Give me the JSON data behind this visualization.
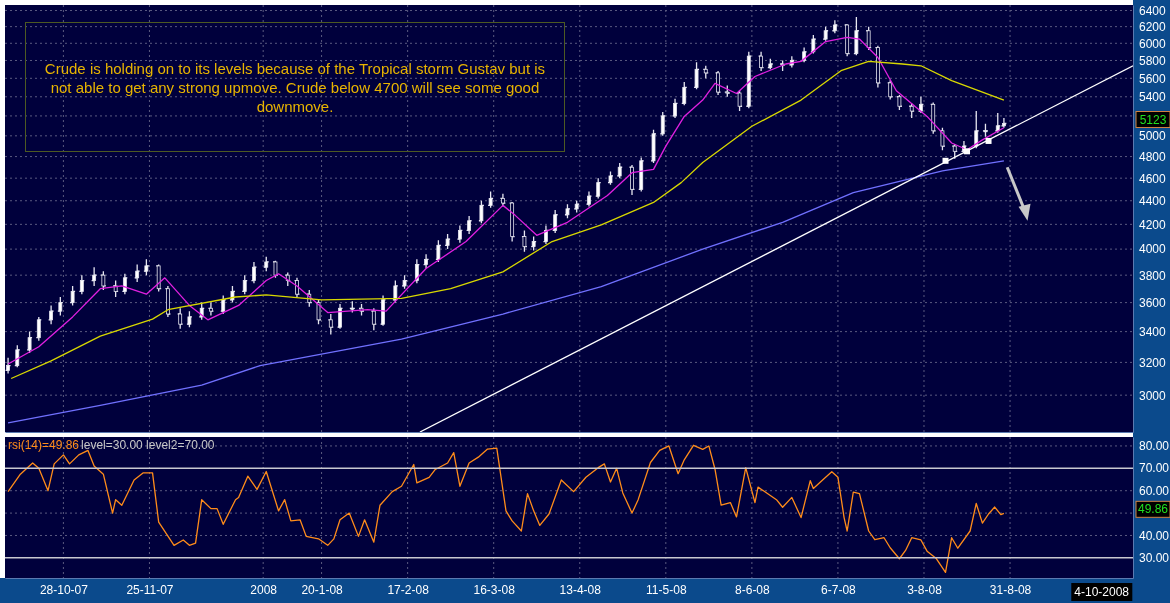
{
  "chart_data": [
    {
      "type": "candlestick",
      "log": true,
      "grid": true,
      "tick_labels": "y",
      "xlim": [
        "2007-10-09",
        "2008-10-10"
      ],
      "ylim": [
        2790,
        6470
      ],
      "xticks": [
        {
          "value": "2007-10-28",
          "label": null
        },
        {
          "value": "2007-11-25",
          "label": null
        },
        {
          "value": "2008-01-01",
          "label": null
        },
        {
          "value": "2008-01-20",
          "label": null
        },
        {
          "value": "2008-02-17",
          "label": null
        },
        {
          "value": "2008-03-16",
          "label": null
        },
        {
          "value": "2008-04-13",
          "label": null
        },
        {
          "value": "2008-05-11",
          "label": null
        },
        {
          "value": "2008-06-08",
          "label": null
        },
        {
          "value": "2008-07-06",
          "label": null
        },
        {
          "value": "2008-08-03",
          "label": null
        },
        {
          "value": "2008-08-31",
          "label": null
        }
      ],
      "yticks": [
        3000,
        3200,
        3400,
        3600,
        3800,
        4000,
        4200,
        4400,
        4600,
        4800,
        5000,
        {
          "value": 5200,
          "label": null
        },
        5400,
        5600,
        5800,
        6000,
        6200,
        6400
      ],
      "x": [
        "2007-10-10",
        "2007-10-13",
        "2007-10-17",
        "2007-10-20",
        "2007-10-24",
        "2007-10-27",
        "2007-10-31",
        "2007-11-03",
        "2007-11-07",
        "2007-11-10",
        "2007-11-14",
        "2007-11-17",
        "2007-11-21",
        "2007-11-24",
        "2007-11-28",
        "2007-12-01",
        "2007-12-05",
        "2007-12-08",
        "2007-12-12",
        "2007-12-15",
        "2007-12-19",
        "2007-12-22",
        "2007-12-26",
        "2007-12-29",
        "2008-01-02",
        "2008-01-05",
        "2008-01-09",
        "2008-01-12",
        "2008-01-16",
        "2008-01-19",
        "2008-01-23",
        "2008-01-26",
        "2008-01-30",
        "2008-02-02",
        "2008-02-06",
        "2008-02-09",
        "2008-02-13",
        "2008-02-16",
        "2008-02-20",
        "2008-02-23",
        "2008-02-27",
        "2008-03-01",
        "2008-03-05",
        "2008-03-08",
        "2008-03-12",
        "2008-03-15",
        "2008-03-19",
        "2008-03-22",
        "2008-03-26",
        "2008-03-29",
        "2008-04-02",
        "2008-04-05",
        "2008-04-09",
        "2008-04-12",
        "2008-04-16",
        "2008-04-19",
        "2008-04-23",
        "2008-04-26",
        "2008-04-30",
        "2008-05-03",
        "2008-05-07",
        "2008-05-10",
        "2008-05-14",
        "2008-05-17",
        "2008-05-21",
        "2008-05-24",
        "2008-05-28",
        "2008-05-31",
        "2008-06-04",
        "2008-06-07",
        "2008-06-11",
        "2008-06-14",
        "2008-06-18",
        "2008-06-21",
        "2008-06-25",
        "2008-06-28",
        "2008-07-02",
        "2008-07-05",
        "2008-07-09",
        "2008-07-12",
        "2008-07-16",
        "2008-07-19",
        "2008-07-23",
        "2008-07-26",
        "2008-07-30",
        "2008-08-02",
        "2008-08-06",
        "2008-08-09",
        "2008-08-13",
        "2008-08-16",
        "2008-08-20",
        "2008-08-23",
        "2008-08-27",
        "2008-08-29"
      ],
      "ohlc": [
        [
          3150,
          3230,
          3130,
          3180
        ],
        [
          3180,
          3310,
          3170,
          3280
        ],
        [
          3280,
          3400,
          3260,
          3360
        ],
        [
          3360,
          3500,
          3340,
          3480
        ],
        [
          3480,
          3580,
          3450,
          3540
        ],
        [
          3540,
          3640,
          3510,
          3600
        ],
        [
          3600,
          3720,
          3580,
          3680
        ],
        [
          3680,
          3800,
          3660,
          3760
        ],
        [
          3760,
          3860,
          3720,
          3800
        ],
        [
          3800,
          3830,
          3690,
          3720
        ],
        [
          3720,
          3760,
          3640,
          3680
        ],
        [
          3680,
          3810,
          3660,
          3780
        ],
        [
          3780,
          3880,
          3750,
          3830
        ],
        [
          3830,
          3920,
          3800,
          3870
        ],
        [
          3870,
          3880,
          3680,
          3700
        ],
        [
          3700,
          3720,
          3500,
          3520
        ],
        [
          3520,
          3560,
          3420,
          3450
        ],
        [
          3450,
          3540,
          3430,
          3500
        ],
        [
          3500,
          3600,
          3480,
          3560
        ],
        [
          3560,
          3600,
          3510,
          3540
        ],
        [
          3540,
          3650,
          3520,
          3620
        ],
        [
          3620,
          3720,
          3600,
          3680
        ],
        [
          3680,
          3800,
          3660,
          3760
        ],
        [
          3760,
          3900,
          3740,
          3860
        ],
        [
          3860,
          3940,
          3830,
          3900
        ],
        [
          3900,
          3910,
          3780,
          3800
        ],
        [
          3800,
          3820,
          3720,
          3760
        ],
        [
          3760,
          3780,
          3640,
          3660
        ],
        [
          3660,
          3690,
          3570,
          3600
        ],
        [
          3600,
          3620,
          3450,
          3480
        ],
        [
          3480,
          3520,
          3380,
          3430
        ],
        [
          3430,
          3590,
          3420,
          3560
        ],
        [
          3560,
          3610,
          3530,
          3560
        ],
        [
          3560,
          3590,
          3510,
          3540
        ],
        [
          3540,
          3560,
          3410,
          3450
        ],
        [
          3450,
          3650,
          3440,
          3620
        ],
        [
          3620,
          3760,
          3600,
          3720
        ],
        [
          3720,
          3800,
          3700,
          3760
        ],
        [
          3760,
          3920,
          3740,
          3880
        ],
        [
          3880,
          3960,
          3850,
          3920
        ],
        [
          3920,
          4070,
          3900,
          4030
        ],
        [
          4030,
          4120,
          4000,
          4080
        ],
        [
          4080,
          4190,
          4050,
          4150
        ],
        [
          4150,
          4270,
          4120,
          4230
        ],
        [
          4230,
          4400,
          4210,
          4360
        ],
        [
          4360,
          4480,
          4340,
          4420
        ],
        [
          4420,
          4460,
          4350,
          4380
        ],
        [
          4380,
          4390,
          4060,
          4100
        ],
        [
          4100,
          4150,
          3980,
          4020
        ],
        [
          4020,
          4100,
          3990,
          4060
        ],
        [
          4060,
          4190,
          4040,
          4150
        ],
        [
          4150,
          4320,
          4130,
          4280
        ],
        [
          4280,
          4370,
          4250,
          4330
        ],
        [
          4330,
          4400,
          4300,
          4370
        ],
        [
          4370,
          4480,
          4350,
          4440
        ],
        [
          4440,
          4600,
          4420,
          4560
        ],
        [
          4560,
          4660,
          4540,
          4620
        ],
        [
          4620,
          4740,
          4600,
          4700
        ],
        [
          4700,
          4720,
          4450,
          4500
        ],
        [
          4500,
          4790,
          4480,
          4760
        ],
        [
          4760,
          5060,
          4740,
          5020
        ],
        [
          5020,
          5240,
          5000,
          5200
        ],
        [
          5200,
          5380,
          5180,
          5330
        ],
        [
          5330,
          5560,
          5310,
          5500
        ],
        [
          5500,
          5780,
          5480,
          5700
        ],
        [
          5700,
          5740,
          5600,
          5660
        ],
        [
          5660,
          5680,
          5420,
          5450
        ],
        [
          5450,
          5520,
          5400,
          5440
        ],
        [
          5440,
          5470,
          5250,
          5300
        ],
        [
          5300,
          5900,
          5280,
          5850
        ],
        [
          5850,
          5900,
          5680,
          5720
        ],
        [
          5720,
          5820,
          5700,
          5760
        ],
        [
          5760,
          5800,
          5680,
          5750
        ],
        [
          5750,
          5850,
          5720,
          5800
        ],
        [
          5800,
          5950,
          5780,
          5900
        ],
        [
          5900,
          6100,
          5880,
          6050
        ],
        [
          6050,
          6200,
          6030,
          6150
        ],
        [
          6150,
          6280,
          6120,
          6220
        ],
        [
          6220,
          6230,
          5850,
          5880
        ],
        [
          5880,
          6320,
          5860,
          6150
        ],
        [
          6150,
          6200,
          5920,
          5950
        ],
        [
          5950,
          5970,
          5500,
          5550
        ],
        [
          5550,
          5580,
          5370,
          5400
        ],
        [
          5400,
          5420,
          5260,
          5300
        ],
        [
          5300,
          5330,
          5180,
          5250
        ],
        [
          5250,
          5400,
          5230,
          5320
        ],
        [
          5320,
          5340,
          5020,
          5050
        ],
        [
          5050,
          5080,
          4860,
          4900
        ],
        [
          4900,
          4920,
          4780,
          4850
        ],
        [
          4850,
          4950,
          4830,
          4900
        ],
        [
          4900,
          5250,
          4880,
          5050
        ],
        [
          5050,
          5120,
          4990,
          5050
        ],
        [
          5050,
          5230,
          5030,
          5100
        ],
        [
          5100,
          5180,
          5080,
          5123
        ]
      ],
      "series": [
        {
          "type": "line",
          "color": "#e020e0",
          "x": [
            "2007-10-10",
            "2007-10-20",
            "2007-10-31",
            "2007-11-09",
            "2007-11-16",
            "2007-11-24",
            "2007-11-30",
            "2007-12-08",
            "2007-12-14",
            "2007-12-24",
            "2008-01-02",
            "2008-01-06",
            "2008-01-12",
            "2008-01-22",
            "2008-02-04",
            "2008-02-10",
            "2008-02-23",
            "2008-03-07",
            "2008-03-19",
            "2008-03-23",
            "2008-03-30",
            "2008-04-09",
            "2008-04-22",
            "2008-04-30",
            "2008-05-07",
            "2008-05-11",
            "2008-05-17",
            "2008-05-23",
            "2008-05-27",
            "2008-06-03",
            "2008-06-09",
            "2008-06-19",
            "2008-06-24",
            "2008-07-02",
            "2008-07-09",
            "2008-07-13",
            "2008-07-19",
            "2008-07-25",
            "2008-08-04",
            "2008-08-12",
            "2008-08-17",
            "2008-08-22",
            "2008-08-29"
          ],
          "values": [
            3190,
            3300,
            3500,
            3700,
            3720,
            3660,
            3780,
            3580,
            3480,
            3580,
            3760,
            3810,
            3720,
            3530,
            3550,
            3540,
            3850,
            4060,
            4360,
            4275,
            4110,
            4217,
            4445,
            4650,
            4680,
            4900,
            5195,
            5365,
            5545,
            5435,
            5620,
            5760,
            5790,
            6020,
            6070,
            6050,
            5835,
            5465,
            5195,
            4930,
            4865,
            4960,
            5080
          ]
        },
        {
          "type": "line",
          "color": "#d8d800",
          "x": [
            "2007-10-11",
            "2007-10-24",
            "2007-11-09",
            "2007-11-26",
            "2007-12-01",
            "2007-12-23",
            "2008-01-02",
            "2008-01-20",
            "2008-02-15",
            "2008-03-02",
            "2008-03-19",
            "2008-04-04",
            "2008-04-20",
            "2008-05-07",
            "2008-05-16",
            "2008-05-23",
            "2008-06-08",
            "2008-06-24",
            "2008-07-07",
            "2008-07-16",
            "2008-07-27",
            "2008-08-02",
            "2008-08-12",
            "2008-08-29"
          ],
          "values": [
            3100,
            3210,
            3370,
            3485,
            3550,
            3640,
            3655,
            3620,
            3630,
            3700,
            3825,
            4060,
            4195,
            4385,
            4560,
            4745,
            5095,
            5365,
            5685,
            5790,
            5760,
            5740,
            5575,
            5365
          ]
        },
        {
          "type": "line",
          "color": "#7070ff",
          "x": [
            "2007-10-10",
            "2007-11-09",
            "2007-12-12",
            "2007-12-31",
            "2008-02-15",
            "2008-03-19",
            "2008-04-20",
            "2008-05-23",
            "2008-06-18",
            "2008-07-11",
            "2008-08-09",
            "2008-08-29"
          ],
          "values": [
            2840,
            2940,
            3060,
            3180,
            3350,
            3520,
            3715,
            4000,
            4217,
            4470,
            4667,
            4760
          ]
        },
        {
          "type": "line",
          "color": "#ffffff",
          "x": [
            "2008-02-21",
            "2008-10-10"
          ],
          "values": [
            2790,
            5740
          ]
        },
        {
          "type": "scatter",
          "marker": "square",
          "color": "#ffffff",
          "x": [
            "2008-08-10",
            "2008-08-17",
            "2008-08-24"
          ],
          "values": [
            4760,
            4850,
            4950
          ]
        }
      ],
      "annotations": [
        "Crude is holding on to its levels because of the Tropical storm Gustav but is not able to get any strong upmove. Crude below 4700 will see some good downmove.",
        "5123"
      ]
    },
    {
      "type": "line",
      "grid": true,
      "legend": "top left",
      "title": "level=30.00 level2=70.00",
      "xlim": [
        "2007-10-09",
        "2008-10-10"
      ],
      "ylim": [
        21,
        84
      ],
      "xticks": [
        {
          "value": "2007-10-28",
          "label": "28-10-07"
        },
        {
          "value": "2007-11-25",
          "label": "25-11-07"
        },
        {
          "value": "2008-01-01",
          "label": "2008"
        },
        {
          "value": "2008-01-20",
          "label": "20-1-08"
        },
        {
          "value": "2008-02-17",
          "label": "17-2-08"
        },
        {
          "value": "2008-03-16",
          "label": "16-3-08"
        },
        {
          "value": "2008-04-13",
          "label": "13-4-08"
        },
        {
          "value": "2008-05-11",
          "label": "11-5-08"
        },
        {
          "value": "2008-06-08",
          "label": "8-6-08"
        },
        {
          "value": "2008-07-06",
          "label": "6-7-08"
        },
        {
          "value": "2008-08-03",
          "label": "3-8-08"
        },
        {
          "value": "2008-08-31",
          "label": "31-8-08"
        }
      ],
      "yticks": [
        {
          "value": 40,
          "label": "40.00"
        },
        {
          "value": 50,
          "label": null
        },
        {
          "value": 60,
          "label": "60.00"
        },
        {
          "value": 80,
          "label": "80.00"
        }
      ],
      "ref_lines": [
        {
          "axis": "y",
          "value": 30,
          "label": "30.00",
          "color": "#c8c8d0"
        },
        {
          "axis": "y",
          "value": 70,
          "label": "70.00",
          "color": "#c8c8d0"
        }
      ],
      "series": [
        {
          "name": "rsi(14)=49.86",
          "color": "#ff8c1a",
          "x": [
            "2007-10-10",
            "2007-10-14",
            "2007-10-18",
            "2007-10-20",
            "2007-10-23",
            "2007-10-25",
            "2007-10-28",
            "2007-10-30",
            "2007-11-02",
            "2007-11-05",
            "2007-11-07",
            "2007-11-10",
            "2007-11-13",
            "2007-11-14",
            "2007-11-16",
            "2007-11-20",
            "2007-11-23",
            "2007-11-26",
            "2007-11-28",
            "2007-12-03",
            "2007-12-06",
            "2007-12-08",
            "2007-12-10",
            "2007-12-12",
            "2007-12-15",
            "2007-12-17",
            "2007-12-19",
            "2007-12-23",
            "2007-12-24",
            "2007-12-27",
            "2007-12-30",
            "2008-01-02",
            "2008-01-06",
            "2008-01-08",
            "2008-01-10",
            "2008-01-13",
            "2008-01-15",
            "2008-01-19",
            "2008-01-22",
            "2008-01-24",
            "2008-01-26",
            "2008-01-29",
            "2008-02-01",
            "2008-02-03",
            "2008-02-06",
            "2008-02-08",
            "2008-02-12",
            "2008-02-15",
            "2008-02-19",
            "2008-02-20",
            "2008-02-24",
            "2008-02-26",
            "2008-03-01",
            "2008-03-03",
            "2008-03-05",
            "2008-03-08",
            "2008-03-11",
            "2008-03-14",
            "2008-03-17",
            "2008-03-20",
            "2008-03-22",
            "2008-03-25",
            "2008-03-27",
            "2008-03-29",
            "2008-03-31",
            "2008-04-03",
            "2008-04-07",
            "2008-04-11",
            "2008-04-15",
            "2008-04-19",
            "2008-04-21",
            "2008-04-23",
            "2008-04-25",
            "2008-04-27",
            "2008-04-30",
            "2008-05-02",
            "2008-05-06",
            "2008-05-09",
            "2008-05-12",
            "2008-05-15",
            "2008-05-17",
            "2008-05-20",
            "2008-05-23",
            "2008-05-25",
            "2008-05-27",
            "2008-05-29",
            "2008-06-01",
            "2008-06-03",
            "2008-06-06",
            "2008-06-09",
            "2008-06-10",
            "2008-06-16",
            "2008-06-18",
            "2008-06-21",
            "2008-06-24",
            "2008-06-27",
            "2008-06-28",
            "2008-07-02",
            "2008-07-04",
            "2008-07-06",
            "2008-07-08",
            "2008-07-09",
            "2008-07-11",
            "2008-07-13",
            "2008-07-16",
            "2008-07-18",
            "2008-07-21",
            "2008-07-23",
            "2008-07-26",
            "2008-07-28",
            "2008-07-30",
            "2008-08-02",
            "2008-08-04",
            "2008-08-07",
            "2008-08-10",
            "2008-08-12",
            "2008-08-14",
            "2008-08-18",
            "2008-08-20",
            "2008-08-22",
            "2008-08-24",
            "2008-08-26",
            "2008-08-28",
            "2008-08-29"
          ],
          "values": [
            59.6,
            67.4,
            72.4,
            70,
            60,
            72,
            76,
            72,
            76,
            78,
            71,
            67.4,
            50,
            56,
            53.5,
            64.8,
            68,
            68,
            46,
            35.6,
            38,
            35.6,
            36.6,
            56,
            52,
            52,
            45,
            56,
            57,
            66.5,
            60.6,
            68.6,
            51,
            56,
            46.5,
            47,
            39.6,
            38.5,
            35.6,
            38.5,
            47,
            50,
            39.6,
            47,
            37,
            53.5,
            59.6,
            62,
            71.7,
            63.5,
            66,
            69.5,
            72.4,
            77,
            62,
            72.4,
            75,
            78.6,
            79,
            51,
            46.5,
            42,
            58.7,
            51,
            44.5,
            49.6,
            64.8,
            59.6,
            66,
            70.3,
            72,
            63.9,
            70,
            59,
            50,
            56,
            72.6,
            78,
            80,
            67.6,
            73.8,
            80.3,
            78.5,
            80,
            69.6,
            53.6,
            54.7,
            48.3,
            70.3,
            54.7,
            61.6,
            56,
            52.6,
            57,
            48,
            64.5,
            61,
            66,
            68.5,
            66,
            48,
            42,
            59.4,
            58.7,
            42,
            38.1,
            39,
            34.5,
            29.6,
            33.3,
            39,
            38,
            33,
            29.7,
            23.5,
            39,
            34.3,
            42,
            54.3,
            45.5,
            49.6,
            52.7,
            49.3,
            49.9
          ]
        }
      ],
      "annotations": [
        "49.86",
        "4-10-2008"
      ]
    }
  ]
}
